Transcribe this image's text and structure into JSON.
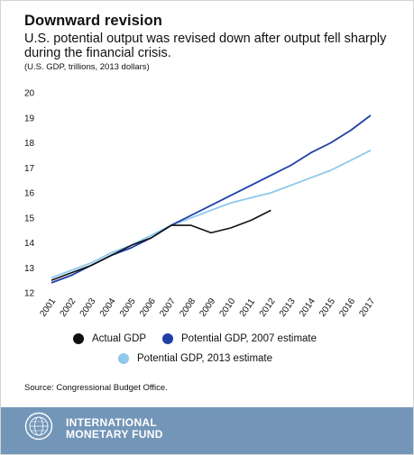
{
  "title": "Downward revision",
  "subtitle": "U.S. potential output was revised down after output fell sharply during the financial crisis.",
  "units": "(U.S. GDP, trillions, 2013 dollars)",
  "source": "Source: Congressional Budget Office.",
  "brand": {
    "name_line1": "INTERNATIONAL",
    "name_line2": "MONETARY FUND",
    "bar_color": "#7396b8",
    "logo_icon": "imf-globe-seal-icon"
  },
  "legend": [
    {
      "label": "Actual GDP",
      "color": "#111111"
    },
    {
      "label": "Potential GDP, 2007 estimate",
      "color": "#1f3fa8"
    },
    {
      "label": "Potential GDP, 2013 estimate",
      "color": "#8ec9ec"
    }
  ],
  "chart_data": {
    "type": "line",
    "ylim": [
      12,
      20
    ],
    "yticks": [
      "12",
      "13",
      "14",
      "15",
      "16",
      "17",
      "18",
      "19",
      "20"
    ],
    "x": [
      "2001",
      "2002",
      "2003",
      "2004",
      "2005",
      "2006",
      "2007",
      "2008",
      "2009",
      "2010",
      "2011",
      "2012",
      "2013",
      "2014",
      "2015",
      "2016",
      "2017"
    ],
    "grid": false,
    "legend_position": "bottom",
    "series": [
      {
        "name": "Actual GDP",
        "color": "#111111",
        "values": [
          12.5,
          12.8,
          13.1,
          13.5,
          13.9,
          14.2,
          14.7,
          14.7,
          14.4,
          14.6,
          14.9,
          15.3,
          null,
          null,
          null,
          null,
          null
        ]
      },
      {
        "name": "Potential GDP, 2007 estimate",
        "color": "#1f3fa8",
        "values": [
          12.4,
          12.7,
          13.1,
          13.5,
          13.8,
          14.2,
          14.7,
          15.1,
          15.5,
          15.9,
          16.3,
          16.7,
          17.1,
          17.6,
          18.0,
          18.5,
          19.1
        ]
      },
      {
        "name": "Potential GDP, 2013 estimate",
        "color": "#8ec9ec",
        "values": [
          12.6,
          12.9,
          13.2,
          13.6,
          13.9,
          14.3,
          14.7,
          15.0,
          15.3,
          15.6,
          15.8,
          16.0,
          16.3,
          16.6,
          16.9,
          17.3,
          17.7
        ]
      }
    ]
  }
}
